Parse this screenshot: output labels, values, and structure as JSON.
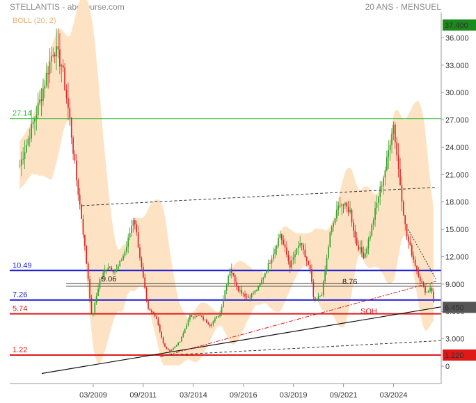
{
  "header": {
    "title": "STELLANTIS - abcbourse.com",
    "period": "20 ANS - MENSUEL"
  },
  "chart_data": {
    "type": "candlestick",
    "indicator_label": "BOLL (20, 2)",
    "last_price_label": "6.450",
    "high_badge": "37.400",
    "low_badge": "1.220",
    "y_ticks": [
      {
        "value": 36,
        "label": "36.000"
      },
      {
        "value": 33,
        "label": "33.000"
      },
      {
        "value": 30,
        "label": "30.000"
      },
      {
        "value": 27,
        "label": "27.000"
      },
      {
        "value": 24,
        "label": "24.000"
      },
      {
        "value": 21,
        "label": "21.000"
      },
      {
        "value": 18,
        "label": "18.000"
      },
      {
        "value": 15,
        "label": "15.000"
      },
      {
        "value": 12,
        "label": "12.000"
      },
      {
        "value": 9,
        "label": "9.000"
      },
      {
        "value": 6,
        "label": "6.000"
      },
      {
        "value": 3,
        "label": "3.000"
      },
      {
        "value": 0,
        "label": "0"
      }
    ],
    "x_ticks": [
      "03/2009",
      "09/2011",
      "03/2014",
      "09/2016",
      "03/2019",
      "09/2021",
      "03/2024"
    ],
    "levels": [
      {
        "value": 27.14,
        "label": "27.14",
        "color": "#33bb33"
      },
      {
        "value": 10.49,
        "label": "10.49",
        "color": "#1a1ad6"
      },
      {
        "value": 7.26,
        "label": "7.26",
        "color": "#1a1ad6"
      },
      {
        "value": 5.74,
        "label": "5.74",
        "color": "#e01818"
      },
      {
        "value": 1.22,
        "label": "1.22",
        "color": "#e01818"
      }
    ],
    "annotations": [
      {
        "text": "9.06",
        "value": 9.06
      },
      {
        "text": "8.76",
        "value": 8.76
      },
      {
        "text": "SOH",
        "value": 5.74
      }
    ],
    "colors": {
      "up": "#33a02c",
      "down": "#d62728",
      "band": "#fde3c4"
    },
    "trend": [
      [
        2005.5,
        22
      ],
      [
        2006.5,
        29
      ],
      [
        2007.2,
        35
      ],
      [
        2007.6,
        33
      ],
      [
        2008.0,
        27
      ],
      [
        2008.3,
        21
      ],
      [
        2008.6,
        16
      ],
      [
        2008.9,
        10
      ],
      [
        2009.1,
        5.2
      ],
      [
        2009.5,
        9.5
      ],
      [
        2009.9,
        11
      ],
      [
        2010.3,
        10.3
      ],
      [
        2010.8,
        12.8
      ],
      [
        2011.2,
        16.5
      ],
      [
        2011.6,
        10.5
      ],
      [
        2011.9,
        6.2
      ],
      [
        2012.3,
        5.5
      ],
      [
        2012.7,
        2.2
      ],
      [
        2013.0,
        1.6
      ],
      [
        2013.5,
        2.7
      ],
      [
        2014.0,
        5.5
      ],
      [
        2014.5,
        5.5
      ],
      [
        2015.0,
        4.5
      ],
      [
        2015.5,
        5.8
      ],
      [
        2016.0,
        10.8
      ],
      [
        2016.4,
        8.5
      ],
      [
        2016.9,
        7.5
      ],
      [
        2017.4,
        8.5
      ],
      [
        2018.0,
        11.5
      ],
      [
        2018.5,
        14.5
      ],
      [
        2019.0,
        11
      ],
      [
        2019.5,
        13.5
      ],
      [
        2020.0,
        10.5
      ],
      [
        2020.2,
        7
      ],
      [
        2020.6,
        8
      ],
      [
        2021.0,
        14.5
      ],
      [
        2021.5,
        18
      ],
      [
        2022.0,
        17
      ],
      [
        2022.3,
        13.5
      ],
      [
        2022.7,
        12
      ],
      [
        2023.0,
        14.5
      ],
      [
        2023.4,
        18.5
      ],
      [
        2023.8,
        22
      ],
      [
        2024.15,
        26.8
      ],
      [
        2024.5,
        20
      ],
      [
        2024.8,
        14.5
      ],
      [
        2025.2,
        11.5
      ],
      [
        2025.5,
        9.5
      ],
      [
        2025.8,
        8
      ],
      [
        2026.05,
        8.8
      ],
      [
        2026.2,
        6.45
      ]
    ]
  }
}
